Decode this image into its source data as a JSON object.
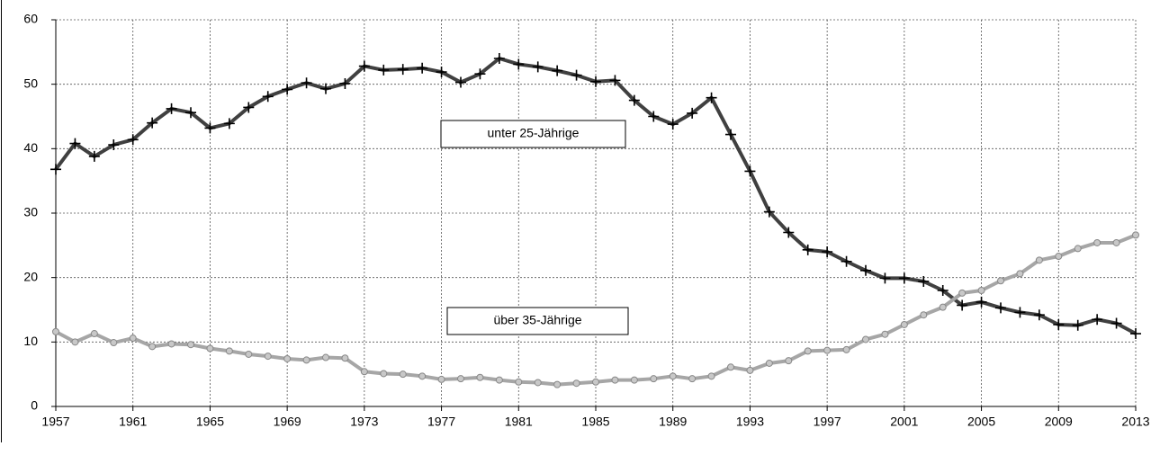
{
  "chart_data": {
    "type": "line",
    "x": [
      1957,
      1958,
      1959,
      1960,
      1961,
      1962,
      1963,
      1964,
      1965,
      1966,
      1967,
      1968,
      1969,
      1970,
      1971,
      1972,
      1973,
      1974,
      1975,
      1976,
      1977,
      1978,
      1979,
      1980,
      1981,
      1982,
      1983,
      1984,
      1985,
      1986,
      1987,
      1988,
      1989,
      1990,
      1991,
      1992,
      1993,
      1994,
      1995,
      1996,
      1997,
      1998,
      1999,
      2000,
      2001,
      2002,
      2003,
      2004,
      2005,
      2006,
      2007,
      2008,
      2009,
      2010,
      2011,
      2012,
      2013
    ],
    "series": [
      {
        "name": "unter 25-Jährige",
        "color": "#404040",
        "marker": "plus",
        "values": [
          36.8,
          40.8,
          38.8,
          40.6,
          41.4,
          44.0,
          46.2,
          45.6,
          43.2,
          43.9,
          46.4,
          48.1,
          49.2,
          50.2,
          49.3,
          50.1,
          52.8,
          52.2,
          52.3,
          52.5,
          51.9,
          50.3,
          51.6,
          54.0,
          53.1,
          52.7,
          52.1,
          51.4,
          50.4,
          50.6,
          47.5,
          45.0,
          43.8,
          45.5,
          47.9,
          42.2,
          36.5,
          30.2,
          27.0,
          24.3,
          24.0,
          22.5,
          21.1,
          19.9,
          19.9,
          19.4,
          18.0,
          15.7,
          16.2,
          15.3,
          14.6,
          14.2,
          12.7,
          12.6,
          13.5,
          12.9,
          11.3
        ]
      },
      {
        "name": "über 35-Jährige",
        "color": "#a6a6a6",
        "marker": "circle",
        "values": [
          11.6,
          10.0,
          11.3,
          9.9,
          10.6,
          9.3,
          9.7,
          9.6,
          9.0,
          8.6,
          8.1,
          7.8,
          7.4,
          7.2,
          7.6,
          7.5,
          5.4,
          5.1,
          5.0,
          4.7,
          4.2,
          4.3,
          4.5,
          4.1,
          3.8,
          3.7,
          3.4,
          3.6,
          3.8,
          4.1,
          4.1,
          4.3,
          4.7,
          4.3,
          4.7,
          6.1,
          5.6,
          6.7,
          7.1,
          8.6,
          8.7,
          8.8,
          10.4,
          11.2,
          12.7,
          14.2,
          15.4,
          17.6,
          18.0,
          19.5,
          20.6,
          22.7,
          23.3,
          24.5,
          25.4,
          25.4,
          26.6
        ]
      }
    ],
    "xlim": [
      1957,
      2013
    ],
    "xticks": [
      1957,
      1961,
      1965,
      1969,
      1973,
      1977,
      1981,
      1985,
      1989,
      1993,
      1997,
      2001,
      2005,
      2009,
      2013
    ],
    "ylim": [
      0,
      60
    ],
    "yticks": [
      0,
      10,
      20,
      30,
      40,
      50,
      60
    ],
    "grid": true
  }
}
